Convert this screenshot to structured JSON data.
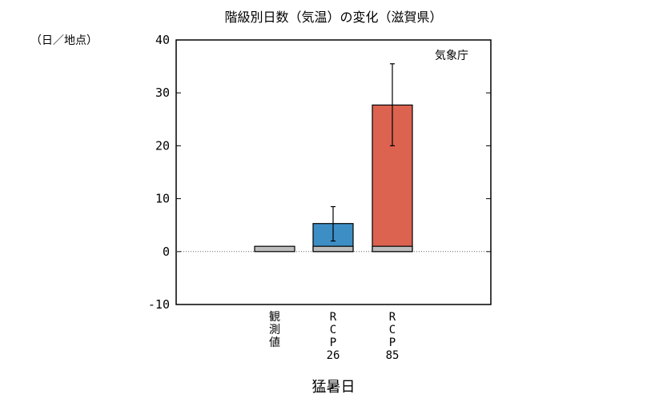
{
  "chart_data": {
    "type": "bar",
    "title": "階級別日数（気温）の変化（滋賀県）",
    "ylabel_unit": "（日／地点）",
    "xlabel": "猛暑日",
    "source": "気象庁",
    "ylim": [
      -10,
      40
    ],
    "yticks": [
      -10,
      0,
      10,
      20,
      30,
      40
    ],
    "categories": [
      {
        "label_lines": [
          "観",
          "測",
          "値"
        ]
      },
      {
        "label_lines": [
          "R",
          "C",
          "P",
          "26"
        ]
      },
      {
        "label_lines": [
          "R",
          "C",
          "P",
          "85"
        ]
      }
    ],
    "series": [
      {
        "values": [
          1.0,
          1.0,
          1.0
        ],
        "color": "#bdbdbd"
      },
      {
        "values": [
          null,
          5.3,
          27.7
        ],
        "colors": [
          "#3d8ec5",
          "#db6350"
        ],
        "error_bars": [
          null,
          [
            2.0,
            8.5
          ],
          [
            20.0,
            35.5
          ]
        ]
      }
    ],
    "baseline_dotted": 0,
    "grid": false
  }
}
